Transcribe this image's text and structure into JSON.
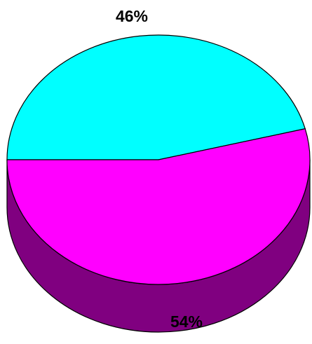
{
  "chart_data": {
    "type": "pie",
    "title": "",
    "slices": [
      {
        "label": "46%",
        "value": 46,
        "color": "#00FFFF",
        "side_color": "#008080"
      },
      {
        "label": "54%",
        "value": 54,
        "color": "#FF00FF",
        "side_color": "#800080"
      }
    ],
    "style": "3d",
    "legend": "none"
  }
}
